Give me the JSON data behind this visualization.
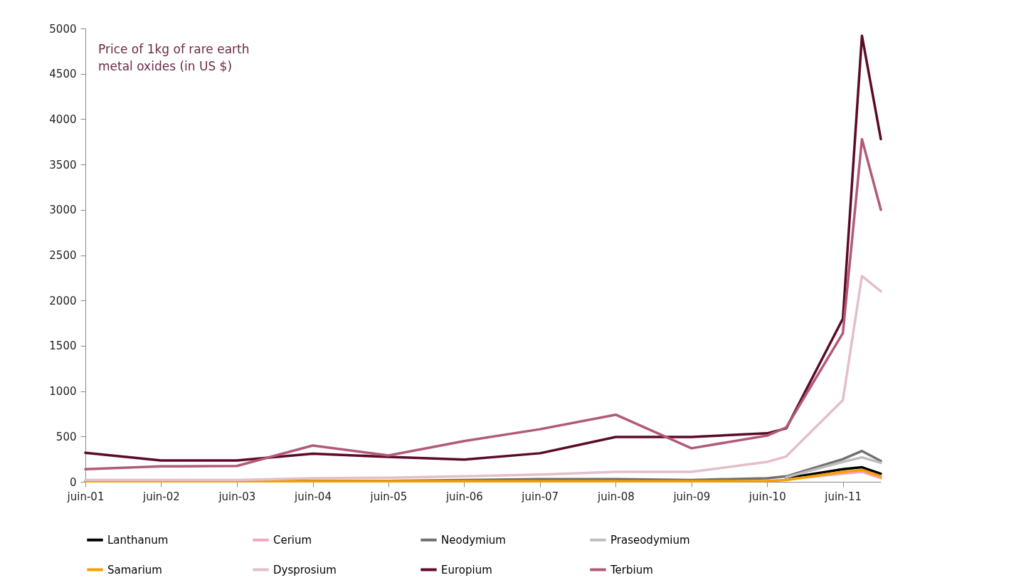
{
  "chart_data": {
    "type": "line",
    "title": "Price of 1kg of rare earth metal oxides (in US $)",
    "x": [
      "2001-06",
      "2002-06",
      "2003-06",
      "2004-06",
      "2005-06",
      "2006-06",
      "2007-06",
      "2008-06",
      "2009-06",
      "2010-06",
      "2010-09",
      "2011-06",
      "2011-09",
      "2011-12"
    ],
    "xlim": [
      "2001-06",
      "2011-12"
    ],
    "xticks": [
      {
        "value": "2001-06",
        "label": "juin-01"
      },
      {
        "value": "2002-06",
        "label": "juin-02"
      },
      {
        "value": "2003-06",
        "label": "juin-03"
      },
      {
        "value": "2004-06",
        "label": "juin-04"
      },
      {
        "value": "2005-06",
        "label": "juin-05"
      },
      {
        "value": "2006-06",
        "label": "juin-06"
      },
      {
        "value": "2007-06",
        "label": "juin-07"
      },
      {
        "value": "2008-06",
        "label": "juin-08"
      },
      {
        "value": "2009-06",
        "label": "juin-09"
      },
      {
        "value": "2010-06",
        "label": "juin-10"
      },
      {
        "value": "2011-06",
        "label": "juin-11"
      }
    ],
    "ylim": [
      0,
      5000
    ],
    "yticks": [
      0,
      500,
      1000,
      1500,
      2000,
      2500,
      3000,
      3500,
      4000,
      4500,
      5000
    ],
    "grid": false,
    "legend": "bottom",
    "marker": "none",
    "line_style": "solid",
    "series": [
      {
        "name": "Lanthanum",
        "color": "#000000",
        "values": [
          null,
          null,
          null,
          null,
          null,
          null,
          null,
          null,
          null,
          null,
          40,
          140,
          160,
          90
        ]
      },
      {
        "name": "Cerium",
        "color": "#f4a6c0",
        "values": [
          null,
          null,
          null,
          null,
          null,
          null,
          null,
          null,
          null,
          null,
          25,
          90,
          110,
          40
        ]
      },
      {
        "name": "Neodymium",
        "color": "#707070",
        "values": [
          10,
          10,
          10,
          10,
          10,
          20,
          30,
          30,
          20,
          40,
          60,
          250,
          340,
          230
        ]
      },
      {
        "name": "Praseodymium",
        "color": "#bdbdbd",
        "values": [
          null,
          null,
          null,
          null,
          null,
          null,
          null,
          null,
          null,
          null,
          50,
          220,
          270,
          210
        ]
      },
      {
        "name": "Samarium",
        "color": "#f5a000",
        "values": [
          5,
          5,
          5,
          5,
          5,
          5,
          5,
          5,
          5,
          10,
          20,
          110,
          130,
          60
        ]
      },
      {
        "name": "Dysprosium",
        "color": "#e3bfc8",
        "values": [
          20,
          20,
          20,
          40,
          45,
          60,
          80,
          110,
          110,
          220,
          280,
          900,
          2270,
          2100
        ]
      },
      {
        "name": "Europium",
        "color": "#5c0a2a",
        "values": [
          320,
          235,
          235,
          310,
          275,
          245,
          315,
          495,
          495,
          535,
          590,
          1800,
          4920,
          3780
        ]
      },
      {
        "name": "Terbium",
        "color": "#b05a7a",
        "values": [
          140,
          170,
          175,
          400,
          290,
          450,
          580,
          740,
          370,
          510,
          600,
          1640,
          3780,
          3000
        ]
      }
    ]
  }
}
